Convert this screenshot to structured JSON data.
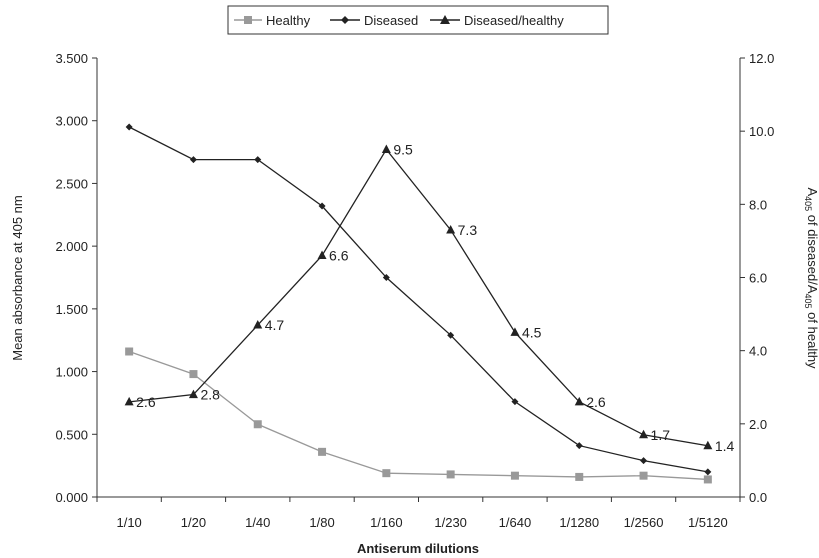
{
  "chart_data": {
    "type": "line",
    "categories": [
      "1/10",
      "1/20",
      "1/40",
      "1/80",
      "1/160",
      "1/230",
      "1/640",
      "1/1280",
      "1/2560",
      "1/5120"
    ],
    "xlabel": "Antiserum dilutions",
    "ylabel": "Mean absorbance at 405 nm",
    "y2label_prefix": "A",
    "y2label_sub1": "405",
    "y2label_mid": " of diseased/A",
    "y2label_sub2": "405",
    "y2label_suffix": " of healthy",
    "ylim": [
      0,
      3.5
    ],
    "y2lim": [
      0,
      12
    ],
    "yticks": [
      "0.000",
      "0.500",
      "1.000",
      "1.500",
      "2.000",
      "2.500",
      "3.000",
      "3.500"
    ],
    "y2ticks": [
      "0.0",
      "2.0",
      "4.0",
      "6.0",
      "8.0",
      "10.0",
      "12.0"
    ],
    "legend_position": "top-center",
    "series": [
      {
        "name": "Healthy",
        "axis": "left",
        "marker": "square",
        "color": "#999999",
        "values": [
          1.16,
          0.98,
          0.58,
          0.36,
          0.19,
          0.18,
          0.17,
          0.16,
          0.17,
          0.14
        ]
      },
      {
        "name": "Diseased",
        "axis": "left",
        "marker": "diamond",
        "color": "#222222",
        "values": [
          2.95,
          2.69,
          2.69,
          2.32,
          1.75,
          1.29,
          0.76,
          0.41,
          0.29,
          0.2
        ]
      },
      {
        "name": "Diseased/healthy",
        "axis": "right",
        "marker": "triangle",
        "color": "#222222",
        "values": [
          2.6,
          2.8,
          4.7,
          6.6,
          9.5,
          7.3,
          4.5,
          2.6,
          1.7,
          1.4
        ],
        "labels": [
          "2.6",
          "2.8",
          "4.7",
          "6.6",
          "9.5",
          "7.3",
          "4.5",
          "2.6",
          "1.7",
          "1.4"
        ]
      }
    ]
  }
}
